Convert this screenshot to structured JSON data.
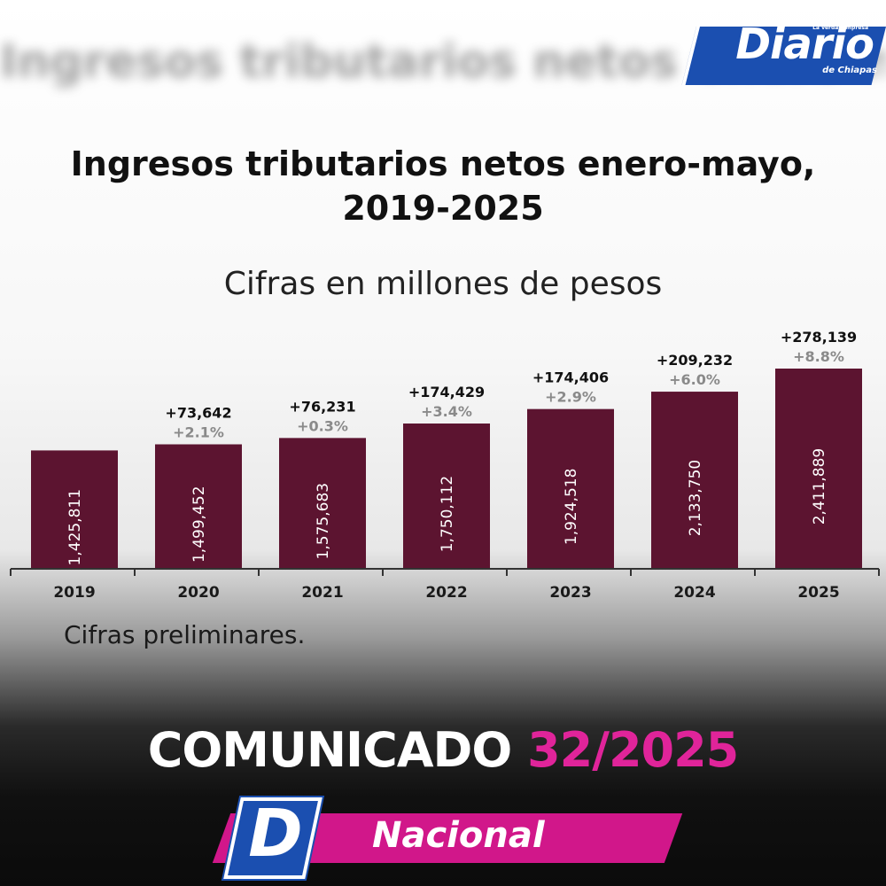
{
  "header": {
    "blurred_text": "Ingresos tributarios netos enero-mayo",
    "logo_text": "Diario",
    "logo_tagline": "La verdad impresa",
    "logo_subtitle": "de Chiapas"
  },
  "chart_data": {
    "type": "bar",
    "title": "Ingresos tributarios netos enero-mayo, 2019-2025",
    "subtitle": "Cifras en millones de pesos",
    "categories": [
      "2019",
      "2020",
      "2021",
      "2022",
      "2023",
      "2024",
      "2025"
    ],
    "values": [
      1425811,
      1499452,
      1575683,
      1750112,
      1924518,
      2133750,
      2411889
    ],
    "value_labels": [
      "1,425,811",
      "1,499,452",
      "1,575,683",
      "1,750,112",
      "1,924,518",
      "2,133,750",
      "2,411,889"
    ],
    "diff_labels": [
      "",
      "+73,642",
      "+76,231",
      "+174,429",
      "+174,406",
      "+209,232",
      "+278,139"
    ],
    "pct_labels": [
      "",
      "+2.1%",
      "+0.3%",
      "+3.4%",
      "+2.9%",
      "+6.0%",
      "+8.8%"
    ],
    "ylim": [
      0,
      2500000
    ],
    "grid": false,
    "note": "Cifras preliminares.",
    "colors": {
      "bar": "#5c1430",
      "diff": "#111111",
      "pct": "#8a8a8a",
      "axis": "#333333"
    }
  },
  "footer": {
    "banner_prefix": "COMUNICADO",
    "banner_number": "32/2025",
    "section_badge": "D",
    "section_label": "Nacional",
    "colors": {
      "accent": "#e0249a",
      "section_bar": "#d1178a",
      "brand_blue": "#1b4fb0"
    }
  }
}
